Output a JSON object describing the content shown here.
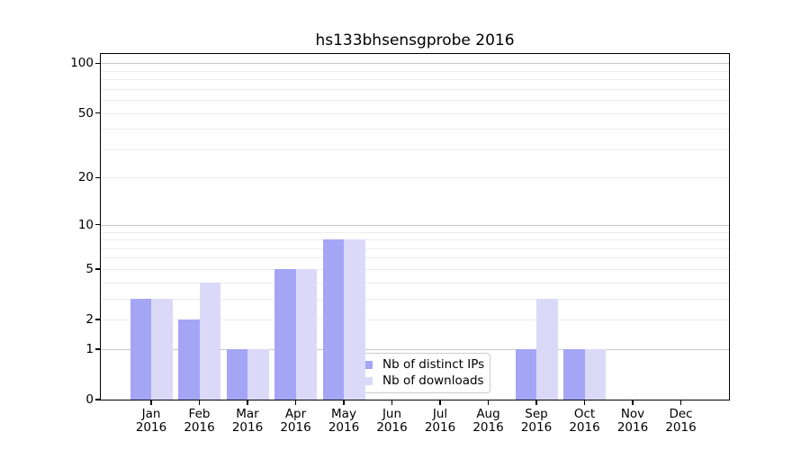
{
  "title": "hs133bhsensgprobe 2016",
  "chart_data": {
    "type": "bar",
    "title": "hs133bhsensgprobe 2016",
    "year": "2016",
    "months": [
      "Jan",
      "Feb",
      "Mar",
      "Apr",
      "May",
      "Jun",
      "Jul",
      "Aug",
      "Sep",
      "Oct",
      "Nov",
      "Dec"
    ],
    "categories": [
      "Jan 2016",
      "Feb 2016",
      "Mar 2016",
      "Apr 2016",
      "May 2016",
      "Jun 2016",
      "Jul 2016",
      "Aug 2016",
      "Sep 2016",
      "Oct 2016",
      "Nov 2016",
      "Dec 2016"
    ],
    "series": [
      {
        "name": "Nb of distinct IPs",
        "color": "#a5a5f6",
        "values": [
          3,
          2,
          1,
          5,
          8,
          0,
          0,
          0,
          1,
          1,
          0,
          0
        ]
      },
      {
        "name": "Nb of downloads",
        "color": "#dadaf8",
        "values": [
          3,
          4,
          1,
          5,
          8,
          0,
          0,
          0,
          3,
          1,
          0,
          0
        ]
      }
    ],
    "xlabel": "",
    "ylabel": "",
    "y_scale": "log10(1+v)",
    "ylim": [
      0,
      113.6
    ],
    "y_ticks": [
      0,
      1,
      2,
      5,
      10,
      20,
      50,
      100
    ],
    "y_major_gridlines": [
      1,
      10,
      100
    ],
    "y_minor_gridlines": [
      2,
      3,
      4,
      5,
      6,
      7,
      8,
      9,
      20,
      30,
      40,
      50,
      60,
      70,
      80,
      90
    ],
    "grid": true,
    "legend_position": "inside lower-center",
    "legend": [
      "Nb of distinct IPs",
      "Nb of downloads"
    ]
  },
  "colors": {
    "background": "#ffffff",
    "axis": "#000000",
    "grid_major": "#c9c9c9",
    "grid_minor": "#ececec",
    "series_1": "#a5a5f6",
    "series_2": "#dadaf8",
    "legend_border": "#cccccc"
  }
}
